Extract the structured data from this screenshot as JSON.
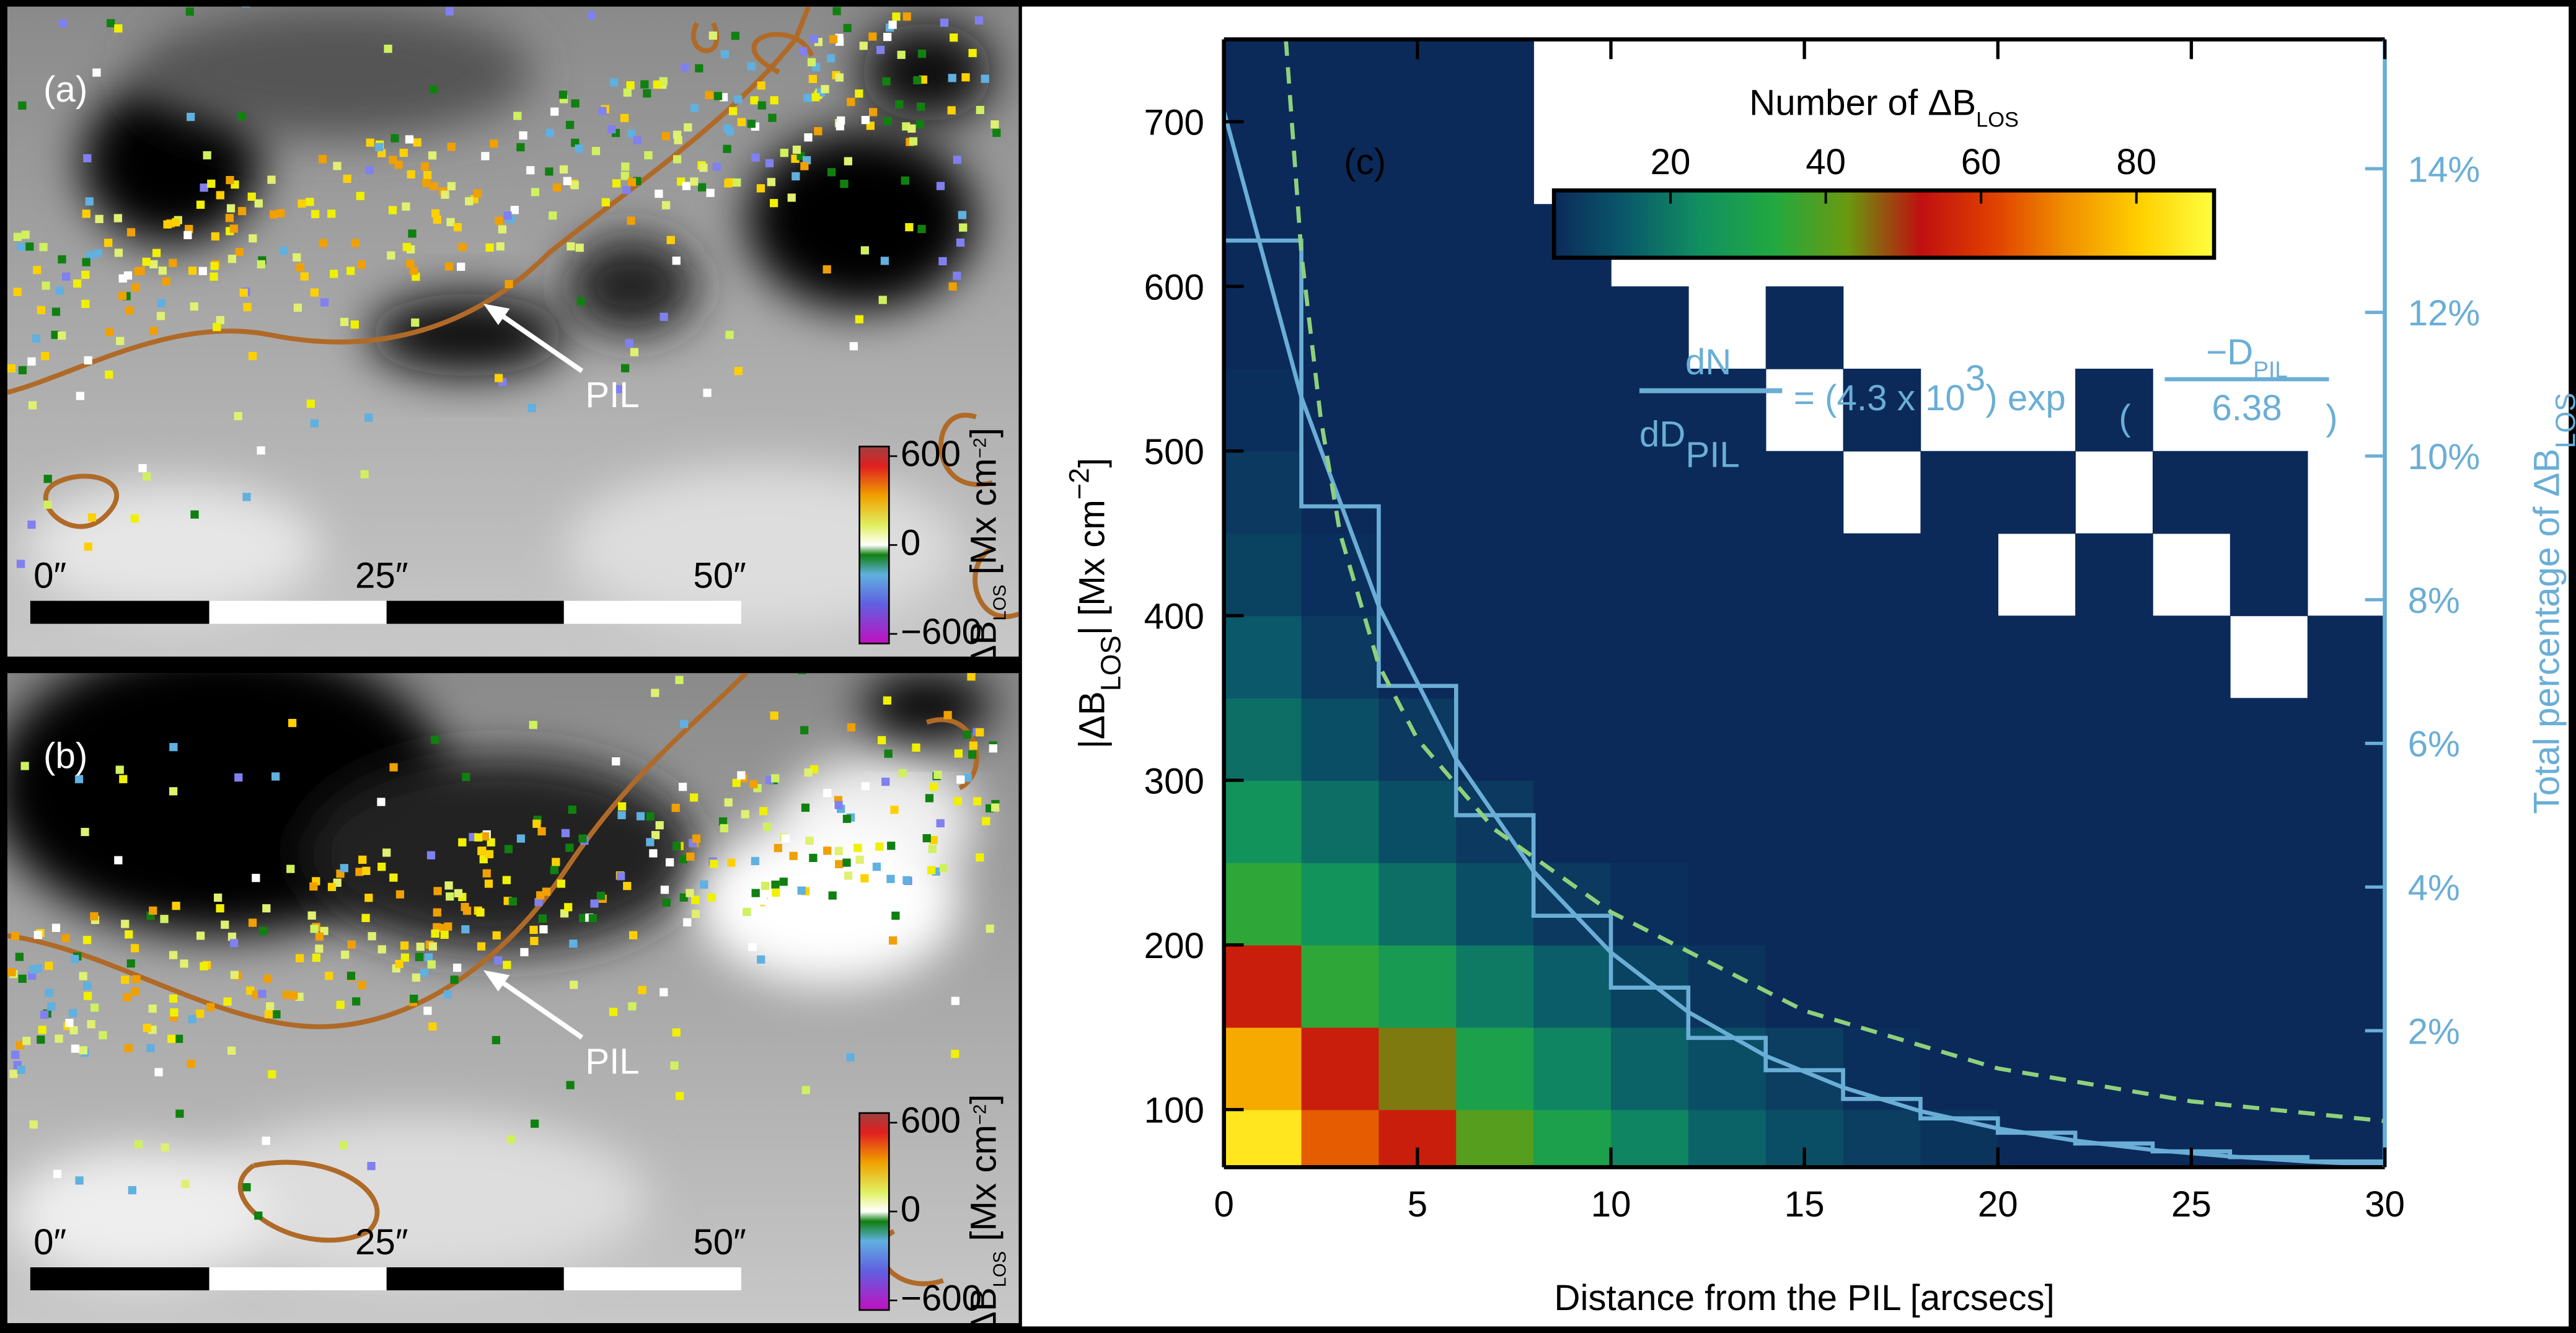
{
  "image_panels": [
    {
      "label": "(a)",
      "pil": "PIL",
      "scale_labels": [
        "0″",
        "25″",
        "50″"
      ],
      "colorbar_lim": [
        -665,
        665
      ],
      "colorbar_ticks": [
        600,
        0,
        {
          "value": -600,
          "label": "−600"
        }
      ],
      "colorbar_label": [
        {
          "text": "ΔB"
        },
        {
          "sub": "LOS"
        },
        {
          "text": " [Mx cm"
        },
        {
          "sup": "−2"
        },
        {
          "text": "]"
        }
      ]
    },
    {
      "label": "(b)",
      "pil": "PIL",
      "scale_labels": [
        "0″",
        "25″",
        "50″"
      ],
      "colorbar_lim": [
        -665,
        665
      ],
      "colorbar_ticks": [
        600,
        0,
        {
          "value": -600,
          "label": "−600"
        }
      ],
      "colorbar_label": [
        {
          "text": "ΔB"
        },
        {
          "sub": "LOS"
        },
        {
          "text": " [Mx cm"
        },
        {
          "sup": "−2"
        },
        {
          "text": "]"
        }
      ]
    }
  ],
  "chart_data": {
    "type": "heatmap",
    "panel_label": "(c)",
    "xlabel": "Distance from the PIL [arcsecs]",
    "ylabel": [
      {
        "text": "|ΔB"
      },
      {
        "sub": "LOS"
      },
      {
        "text": "| [Mx cm"
      },
      {
        "sup": "−2"
      },
      {
        "text": "]"
      }
    ],
    "y2label": [
      {
        "text": "Total percentage of ΔB"
      },
      {
        "sub": "LOS"
      }
    ],
    "xlim": [
      0,
      30
    ],
    "xticks": [
      0,
      5,
      10,
      15,
      20,
      25,
      30
    ],
    "ylim": [
      65,
      750
    ],
    "yticks": [
      100,
      200,
      300,
      400,
      500,
      600,
      700
    ],
    "y2lim": [
      0.1,
      15.8
    ],
    "y2ticks": [
      {
        "value": 2,
        "label": "2%"
      },
      {
        "value": 4,
        "label": "4%"
      },
      {
        "value": 6,
        "label": "6%"
      },
      {
        "value": 8,
        "label": "8%"
      },
      {
        "value": 10,
        "label": "10%"
      },
      {
        "value": 12,
        "label": "12%"
      },
      {
        "value": 14,
        "label": "14%"
      }
    ],
    "y2color": "#6aaed6",
    "xbins": [
      0,
      2,
      4,
      6,
      8,
      10,
      12,
      14,
      16,
      18,
      20,
      22,
      24,
      26,
      28,
      30
    ],
    "ybins": [
      65,
      100,
      150,
      200,
      250,
      300,
      350,
      400,
      450,
      500,
      550,
      600,
      650,
      700,
      750
    ],
    "counts": [
      [
        85,
        65,
        55,
        40,
        30,
        22,
        16,
        12,
        9,
        7,
        5,
        4,
        3,
        3,
        2
      ],
      [
        75,
        55,
        45,
        30,
        22,
        16,
        12,
        9,
        6,
        5,
        4,
        3,
        2,
        2,
        2
      ],
      [
        55,
        35,
        28,
        20,
        15,
        10,
        7,
        5,
        4,
        3,
        2,
        2,
        2,
        1,
        1
      ],
      [
        35,
        25,
        18,
        12,
        8,
        6,
        4,
        3,
        2,
        2,
        1,
        1,
        1,
        1,
        1
      ],
      [
        25,
        18,
        12,
        8,
        5,
        3,
        2,
        2,
        1,
        1,
        1,
        1,
        1,
        1,
        1
      ],
      [
        18,
        12,
        8,
        5,
        3,
        2,
        1,
        1,
        1,
        1,
        1,
        1,
        1,
        1,
        1
      ],
      [
        14,
        8,
        5,
        3,
        2,
        1,
        1,
        1,
        1,
        1,
        1,
        1,
        1,
        0,
        1
      ],
      [
        10,
        6,
        3,
        2,
        1,
        1,
        1,
        1,
        1,
        1,
        0,
        1,
        0,
        1,
        0
      ],
      [
        8,
        4,
        2,
        1,
        1,
        1,
        1,
        1,
        0,
        1,
        1,
        0,
        1,
        1,
        0
      ],
      [
        6,
        3,
        2,
        1,
        1,
        1,
        1,
        0,
        1,
        0,
        0,
        1,
        0,
        0,
        0
      ],
      [
        5,
        2,
        1,
        1,
        1,
        1,
        0,
        1,
        0,
        0,
        0,
        0,
        0,
        0,
        0
      ],
      [
        4,
        2,
        1,
        1,
        1,
        0,
        0,
        0,
        0,
        0,
        0,
        0,
        0,
        0,
        0
      ],
      [
        3,
        1,
        1,
        1,
        0,
        0,
        0,
        0,
        0,
        0,
        0,
        0,
        0,
        0,
        0
      ],
      [
        2,
        1,
        1,
        1,
        0,
        0,
        0,
        0,
        0,
        0,
        0,
        0,
        0,
        0,
        0
      ]
    ],
    "colormap": [
      "#0b2a5a",
      "#0a5a6a",
      "#119060",
      "#22a840",
      "#6a9a10",
      "#c01010",
      "#e04000",
      "#f09000",
      "#ffd000",
      "#ffff40"
    ],
    "colorbar": {
      "label": [
        {
          "text": "Number of ΔB"
        },
        {
          "sub": "LOS"
        }
      ],
      "range": [
        5,
        90
      ],
      "ticks": [
        20,
        40,
        60,
        80
      ]
    },
    "histogram": {
      "axis": "y2",
      "color": "#6aaed6",
      "bins": [
        0,
        2,
        4,
        6,
        8,
        10,
        12,
        14,
        16,
        18,
        20,
        22,
        24,
        26,
        28,
        30
      ],
      "values": [
        13,
        9.3,
        6.8,
        5,
        3.6,
        2.6,
        1.9,
        1.45,
        1.05,
        0.78,
        0.58,
        0.43,
        0.32,
        0.24,
        0.18
      ]
    },
    "series": [
      {
        "axis": "y2",
        "color": "#6aaed6",
        "dash": false,
        "x": [
          0,
          2,
          4,
          6,
          8,
          10,
          12,
          14,
          16,
          18,
          20,
          22,
          24,
          26,
          28,
          30
        ],
        "values": [
          14.8,
          10.82,
          7.91,
          5.78,
          4.22,
          3.09,
          2.26,
          1.65,
          1.21,
          0.88,
          0.64,
          0.47,
          0.34,
          0.25,
          0.18,
          0.13
        ]
      },
      {
        "axis": "y",
        "color": "#8fd07a",
        "dash": true,
        "x": [
          1.6,
          2,
          2.5,
          3,
          4,
          5,
          7,
          10,
          15,
          20,
          25,
          30
        ],
        "values": [
          750,
          620,
          520,
          450,
          370,
          325,
          270,
          220,
          160,
          125,
          105,
          93
        ]
      }
    ],
    "equation": {
      "numerator": "dN",
      "denominator": [
        {
          "text": "dD"
        },
        {
          "sub": "PIL"
        }
      ],
      "rhs": [
        {
          "text": "= (4.3 x 10"
        },
        {
          "sup": "3"
        },
        {
          "text": ") exp"
        }
      ],
      "open": "(",
      "close": ")",
      "exp_num": [
        {
          "text": "−D"
        },
        {
          "sub": "PIL"
        }
      ],
      "exp_den": "6.38"
    }
  }
}
